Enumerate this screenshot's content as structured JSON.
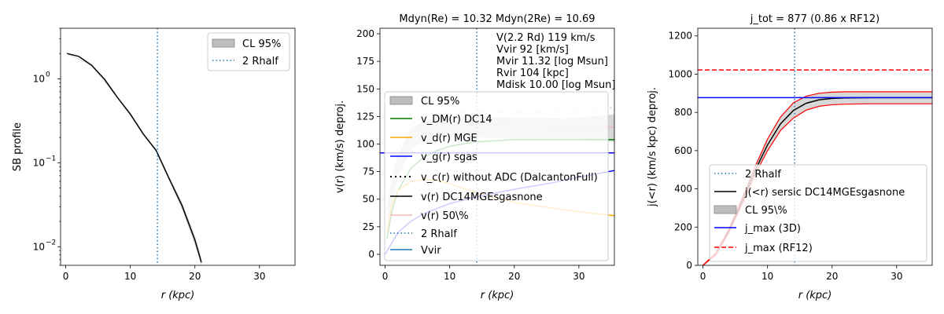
{
  "colors": {
    "black": "#000000",
    "band_gray": "#bdbdbd",
    "tab_blue": "#1f77b4",
    "green": "#008000",
    "orange": "#ffa500",
    "blue": "#0000ff",
    "red": "#ff0000",
    "pink": "#f4b8b8",
    "dotted_gray": "#c8c8c8"
  },
  "chart_data": [
    {
      "type": "line",
      "title": "",
      "xlabel": "r (kpc)",
      "ylabel": "SB profile",
      "xlim": [
        -0.8,
        35.5
      ],
      "ylim": [
        0.006,
        4
      ],
      "yscale": "log",
      "x_ticks": [
        0,
        10,
        20,
        30
      ],
      "x_tick_labels": [
        "0",
        "10",
        "20",
        "30"
      ],
      "y_ticks": [
        0.01,
        0.1,
        1
      ],
      "y_tick_labels": [
        "10",
        "10",
        "10"
      ],
      "y_tick_exponents": [
        "−2",
        "−1",
        "0"
      ],
      "legend_position": "upper right",
      "series": [
        {
          "name": "",
          "style": "solid-black",
          "x": [
            0.2,
            2,
            4,
            6,
            8,
            10,
            12,
            14,
            16,
            18,
            20,
            21
          ],
          "y": [
            2.0,
            1.85,
            1.45,
            0.99,
            0.6,
            0.38,
            0.22,
            0.14,
            0.065,
            0.031,
            0.012,
            0.0065
          ]
        },
        {
          "name": "CL 95%",
          "style": "band-gray",
          "x": [
            0.2,
            4,
            8,
            12,
            14,
            16,
            18,
            20,
            21
          ],
          "upper": [
            2.02,
            1.47,
            0.61,
            0.225,
            0.145,
            0.069,
            0.034,
            0.0135,
            0.0075
          ],
          "lower": [
            1.98,
            1.43,
            0.59,
            0.215,
            0.135,
            0.061,
            0.028,
            0.0105,
            0.0058
          ]
        },
        {
          "name": "2 Rhalf",
          "style": "vline-dotted",
          "x": 14.2
        }
      ],
      "legend": [
        "CL 95%",
        "2 Rhalf"
      ]
    },
    {
      "type": "line",
      "title": "Mdyn(Re) = 10.32  Mdyn(2Re) = 10.69",
      "xlabel": "r (kpc)",
      "ylabel": "v(r) (km/s) deproj.",
      "xlim": [
        -0.8,
        35.5
      ],
      "ylim": [
        -10,
        205
      ],
      "x_ticks": [
        0,
        10,
        20,
        30
      ],
      "x_tick_labels": [
        "0",
        "10",
        "20",
        "30"
      ],
      "y_ticks": [
        0,
        25,
        50,
        75,
        100,
        125,
        150,
        175,
        200
      ],
      "y_tick_labels": [
        "0",
        "25",
        "50",
        "75",
        "100",
        "125",
        "150",
        "175",
        "200"
      ],
      "legend_position": "lower left",
      "annotations": [
        "V(2.2 Rd) 119 km/s",
        "Vvir 92 [km/s]",
        "Mvir 11.32 [log Msun]",
        "Rvir 104 [kpc]",
        "Mdisk 10.00 [log Msun]"
      ],
      "series": [
        {
          "name": "CL 95%",
          "style": "band-gray",
          "x": [
            0.5,
            2,
            4,
            6,
            8,
            10,
            14,
            20,
            28,
            35.5
          ],
          "upper": [
            52,
            90,
            114,
            121,
            124,
            125,
            125,
            124,
            123,
            127
          ],
          "lower": [
            30,
            70,
            95,
            103,
            106,
            107,
            106,
            105,
            104,
            102
          ]
        },
        {
          "name": "v_DM(r) DC14",
          "style": "solid-green",
          "x": [
            0.3,
            1,
            2,
            4,
            6,
            8,
            10,
            14,
            20,
            28,
            35.5
          ],
          "y": [
            14,
            38,
            58,
            78,
            88,
            94,
            98,
            102,
            104,
            104,
            104
          ]
        },
        {
          "name": "v_d(r) MGE",
          "style": "solid-orange",
          "x": [
            0.3,
            1,
            2,
            4,
            6,
            8,
            10,
            14,
            20,
            28,
            35.5
          ],
          "y": [
            20,
            44,
            58,
            66,
            68,
            67,
            64,
            56,
            47,
            40,
            35
          ]
        },
        {
          "name": "v_g(r) sgas",
          "style": "solid-blue",
          "x": [
            0,
            2,
            4,
            6,
            10,
            14,
            20,
            26,
            30,
            35.5
          ],
          "y": [
            0,
            20,
            30,
            37,
            46,
            52,
            59,
            65,
            70,
            76
          ]
        },
        {
          "name": "v_c(r) without ADC (DalcantonFull)",
          "style": "dotted-gray",
          "x": [
            0.3,
            2,
            4,
            6,
            8,
            10,
            14,
            20,
            28,
            35.5
          ],
          "y": [
            35,
            95,
            118,
            125,
            128,
            129,
            129,
            129,
            130,
            133
          ]
        },
        {
          "name": "v(r) DC14MGEsgasnone",
          "style": "solid-gray",
          "x": [
            0.3,
            2,
            4,
            6,
            8,
            10,
            14,
            20,
            28,
            35.5
          ],
          "y": [
            40,
            88,
            110,
            117,
            119,
            119,
            118,
            117,
            116,
            115
          ]
        },
        {
          "name": "v(r) 50\\%",
          "style": "solid-pink",
          "x": [
            0.3,
            2,
            4,
            6,
            8,
            10,
            14,
            20,
            28,
            35.5
          ],
          "y": [
            40,
            88,
            110,
            117,
            119,
            119,
            118,
            117,
            116,
            115
          ]
        },
        {
          "name": "2 Rhalf",
          "style": "vline-dotted",
          "x": 14.2
        },
        {
          "name": "Vvir",
          "style": "hline-solid-blue",
          "y": 92
        }
      ],
      "legend": [
        "CL 95%",
        "v_DM(r) DC14",
        "v_d(r) MGE",
        "v_g(r) sgas",
        "v_c(r) without ADC (DalcantonFull)",
        "v(r) DC14MGEsgasnone",
        "v(r) 50\\%",
        "2 Rhalf",
        "Vvir"
      ]
    },
    {
      "type": "line",
      "title": "j_tot = 877 (0.86 x RF12)",
      "xlabel": "r (kpc)",
      "ylabel": "j(<r) (km/s kpc) deproj.",
      "xlim": [
        -0.8,
        35.5
      ],
      "ylim": [
        0,
        1240
      ],
      "x_ticks": [
        0,
        10,
        20,
        30
      ],
      "x_tick_labels": [
        "0",
        "10",
        "20",
        "30"
      ],
      "y_ticks": [
        0,
        200,
        400,
        600,
        800,
        1000,
        1200
      ],
      "y_tick_labels": [
        "0",
        "200",
        "400",
        "600",
        "800",
        "1000",
        "1200"
      ],
      "legend_position": "lower right",
      "series": [
        {
          "name": "2 Rhalf",
          "style": "vline-dotted",
          "x": 14.2
        },
        {
          "name": "j(<r) sersic DC14MGEsgasnone",
          "style": "solid-black",
          "x": [
            0,
            2,
            4,
            6,
            8,
            10,
            12,
            14,
            16,
            18,
            20,
            22,
            26,
            35.5
          ],
          "y": [
            0,
            60,
            180,
            330,
            490,
            630,
            740,
            810,
            848,
            866,
            873,
            876,
            877,
            877
          ]
        },
        {
          "name": "CL 95%",
          "style": "band-gray",
          "x": [
            0,
            2,
            4,
            6,
            8,
            10,
            12,
            14,
            16,
            18,
            20,
            22,
            26,
            35.5
          ],
          "upper": [
            0,
            65,
            190,
            345,
            510,
            660,
            775,
            850,
            885,
            900,
            906,
            908,
            908,
            908
          ],
          "lower": [
            0,
            55,
            170,
            315,
            470,
            600,
            705,
            770,
            812,
            832,
            840,
            843,
            845,
            845
          ]
        },
        {
          "name": "j_max (3D)",
          "style": "hline-solid-blue",
          "y": 877
        },
        {
          "name": "j_max (RF12)",
          "style": "hline-dashed-red",
          "y": 1022
        }
      ],
      "legend": [
        "2 Rhalf",
        "j(<r) sersic DC14MGEsgasnone",
        "CL 95\\%",
        "j_max (3D)",
        "j_max (RF12)"
      ]
    }
  ]
}
